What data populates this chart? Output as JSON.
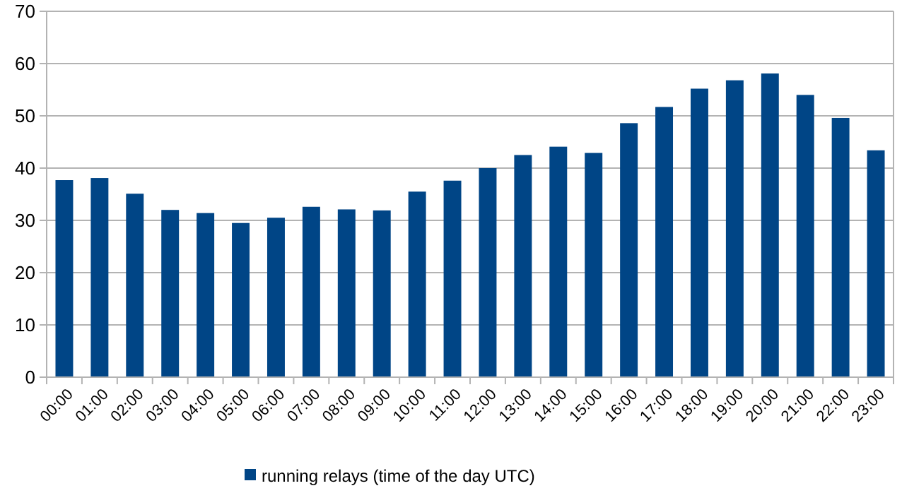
{
  "chart_data": {
    "type": "bar",
    "categories": [
      "00:00",
      "01:00",
      "02:00",
      "03:00",
      "04:00",
      "05:00",
      "06:00",
      "07:00",
      "08:00",
      "09:00",
      "10:00",
      "11:00",
      "12:00",
      "13:00",
      "14:00",
      "15:00",
      "16:00",
      "17:00",
      "18:00",
      "19:00",
      "20:00",
      "21:00",
      "22:00",
      "23:00"
    ],
    "series": [
      {
        "name": "running relays (time of the day UTC)",
        "color": "#004586",
        "values": [
          37.7,
          38.1,
          35.1,
          32.0,
          31.4,
          29.5,
          30.5,
          32.6,
          32.1,
          31.9,
          35.5,
          37.6,
          40.0,
          42.5,
          44.1,
          42.9,
          48.6,
          51.7,
          55.2,
          56.8,
          58.1,
          54.0,
          49.6,
          43.4
        ]
      }
    ],
    "ylim": [
      0,
      70
    ],
    "yticks": [
      0,
      10,
      20,
      30,
      40,
      50,
      60,
      70
    ],
    "grid": "y",
    "legend": "bottom"
  }
}
